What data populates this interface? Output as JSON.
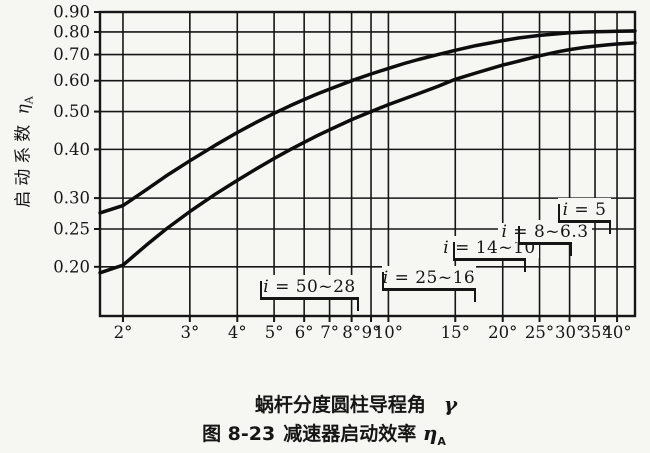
{
  "figure": {
    "y_axis_title": {
      "text": "启动系数",
      "symbol": "η",
      "symbol_sub": "A"
    },
    "x_axis_title": {
      "text": "蜗杆分度圆柱导程角",
      "symbol": "γ"
    },
    "caption": {
      "label": "图 8-23",
      "text": "减速器启动效率",
      "symbol": "η",
      "symbol_sub": "A"
    }
  },
  "chart_data": {
    "type": "line",
    "title": "图 8-23 减速器启动效率 ηA",
    "xlabel": "蜗杆分度圆柱导程角 γ",
    "ylabel": "启动系数 ηA",
    "x_scale": "log",
    "y_scale": "log",
    "xlim": [
      1.74,
      44.6
    ],
    "ylim": [
      0.1496,
      0.9
    ],
    "grid": true,
    "legend": "none",
    "x_ticks": [
      2,
      3,
      4,
      5,
      6,
      7,
      8,
      9,
      10,
      15,
      20,
      25,
      30,
      35,
      40
    ],
    "x_tick_suffix": "°",
    "y_ticks": [
      0.9,
      0.8,
      0.7,
      0.6,
      0.5,
      0.4,
      0.3,
      0.25,
      0.2
    ],
    "y_tick_labels": [
      "0.90",
      "0.80",
      "0.70",
      "0.60",
      "0.50",
      "0.40",
      "0.30",
      "0.25",
      "0.20"
    ],
    "series": [
      {
        "name": "upper-curve",
        "points": [
          [
            1.74,
            0.275
          ],
          [
            2,
            0.287
          ],
          [
            2.3,
            0.315
          ],
          [
            2.6,
            0.342
          ],
          [
            3,
            0.374
          ],
          [
            3.5,
            0.41
          ],
          [
            4,
            0.442
          ],
          [
            4.5,
            0.47
          ],
          [
            5,
            0.495
          ],
          [
            5.5,
            0.517
          ],
          [
            6,
            0.537
          ],
          [
            6.5,
            0.555
          ],
          [
            7,
            0.571
          ],
          [
            8,
            0.6
          ],
          [
            9,
            0.624
          ],
          [
            10,
            0.645
          ],
          [
            11,
            0.664
          ],
          [
            12,
            0.68
          ],
          [
            13.5,
            0.7
          ],
          [
            15,
            0.718
          ],
          [
            17,
            0.738
          ],
          [
            20,
            0.76
          ],
          [
            22,
            0.772
          ],
          [
            25,
            0.784
          ],
          [
            28,
            0.792
          ],
          [
            30,
            0.796
          ],
          [
            33,
            0.8
          ],
          [
            35,
            0.801
          ],
          [
            38,
            0.802
          ],
          [
            40,
            0.803
          ],
          [
            44.6,
            0.805
          ]
        ]
      },
      {
        "name": "lower-curve",
        "points": [
          [
            1.74,
            0.193
          ],
          [
            2,
            0.202
          ],
          [
            2.3,
            0.227
          ],
          [
            2.6,
            0.25
          ],
          [
            3,
            0.277
          ],
          [
            3.5,
            0.307
          ],
          [
            4,
            0.333
          ],
          [
            4.5,
            0.357
          ],
          [
            5,
            0.379
          ],
          [
            5.5,
            0.399
          ],
          [
            6,
            0.417
          ],
          [
            6.5,
            0.434
          ],
          [
            7,
            0.449
          ],
          [
            8,
            0.477
          ],
          [
            9,
            0.5
          ],
          [
            10,
            0.521
          ],
          [
            11,
            0.539
          ],
          [
            12,
            0.556
          ],
          [
            13.5,
            0.58
          ],
          [
            15,
            0.605
          ],
          [
            17,
            0.628
          ],
          [
            20,
            0.658
          ],
          [
            22,
            0.673
          ],
          [
            25,
            0.695
          ],
          [
            28,
            0.712
          ],
          [
            30,
            0.721
          ],
          [
            33,
            0.731
          ],
          [
            35,
            0.736
          ],
          [
            38,
            0.742
          ],
          [
            40,
            0.745
          ],
          [
            44.6,
            0.75
          ]
        ]
      }
    ],
    "annotations": [
      {
        "label": "i = 50~28",
        "x_from": 4.6,
        "x_to": 8.4,
        "y": 0.167
      },
      {
        "label": "i = 25~16",
        "x_from": 9.6,
        "x_to": 17.0,
        "y": 0.177
      },
      {
        "label": "i = 14~10",
        "x_from": 14.8,
        "x_to": 23.0,
        "y": 0.211
      },
      {
        "label": "i = 8~6.3",
        "x_from": 22.0,
        "x_to": 30.5,
        "y": 0.231
      },
      {
        "label": "i = 5",
        "x_from": 28.0,
        "x_to": 38.5,
        "y": 0.264
      }
    ]
  }
}
